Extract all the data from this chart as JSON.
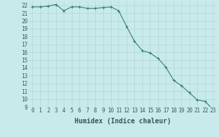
{
  "xlabel": "Humidex (Indice chaleur)",
  "x": [
    0,
    1,
    2,
    3,
    4,
    5,
    6,
    7,
    8,
    9,
    10,
    11,
    12,
    13,
    14,
    15,
    16,
    17,
    18,
    19,
    20,
    21,
    22,
    23
  ],
  "y": [
    21.8,
    21.8,
    21.9,
    22.1,
    21.3,
    21.8,
    21.8,
    21.6,
    21.6,
    21.7,
    21.8,
    21.3,
    19.3,
    17.4,
    16.2,
    15.9,
    15.2,
    14.1,
    12.4,
    11.7,
    10.8,
    9.9,
    9.7,
    8.7
  ],
  "line_color": "#2e7d6e",
  "marker": "+",
  "bg_color": "#c8eaea",
  "grid_color": "#b0d4d4",
  "text_color": "#2e5a5a",
  "ylim": [
    9,
    22.5
  ],
  "xlim": [
    -0.5,
    23.5
  ],
  "yticks": [
    9,
    10,
    11,
    12,
    13,
    14,
    15,
    16,
    17,
    18,
    19,
    20,
    21,
    22
  ],
  "xticks": [
    0,
    1,
    2,
    3,
    4,
    5,
    6,
    7,
    8,
    9,
    10,
    11,
    12,
    13,
    14,
    15,
    16,
    17,
    18,
    19,
    20,
    21,
    22,
    23
  ],
  "tick_fontsize": 5.5,
  "label_fontsize": 7.0
}
